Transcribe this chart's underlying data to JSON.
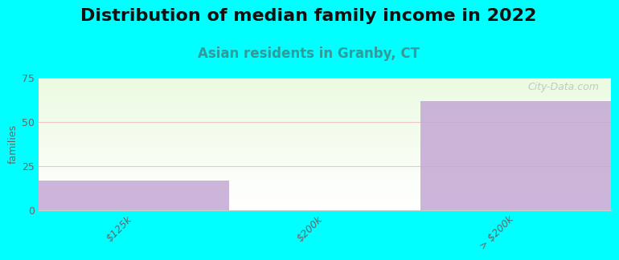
{
  "title": "Distribution of median family income in 2022",
  "subtitle": "Asian residents in Granby, CT",
  "categories": [
    "$125k",
    "$200k",
    "> $200k"
  ],
  "values": [
    17,
    0,
    62
  ],
  "bar_color": "#c4a8d4",
  "bar_color_alpha": 0.85,
  "bg_color": "#00ffff",
  "ylabel": "families",
  "ylim": [
    0,
    75
  ],
  "yticks": [
    0,
    25,
    50,
    75
  ],
  "grid_color": "#f0c0c0",
  "watermark": "City-Data.com",
  "title_fontsize": 16,
  "subtitle_fontsize": 12,
  "subtitle_color": "#339999",
  "tick_label_color": "#666666",
  "ylabel_color": "#666666"
}
